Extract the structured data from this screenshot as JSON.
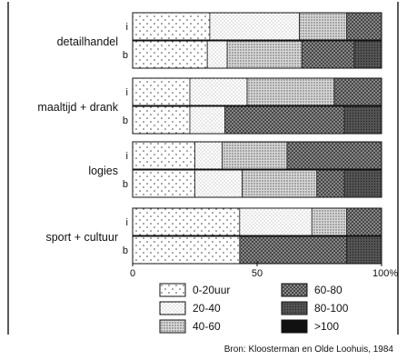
{
  "chart_data": {
    "type": "bar",
    "stacked": true,
    "orientation": "horizontal",
    "x_ticks": [
      0,
      50,
      100
    ],
    "x_tick_labels": [
      "0",
      "50",
      "100%"
    ],
    "xlim": [
      0,
      100
    ],
    "groups": [
      {
        "label": "detailhandel",
        "rows": [
          {
            "label": "i",
            "values": [
              31,
              36,
              19,
              14,
              0,
              0
            ]
          },
          {
            "label": "b",
            "values": [
              30,
              8,
              30,
              21,
              11,
              0
            ]
          }
        ]
      },
      {
        "label": "maaltijd + drank",
        "rows": [
          {
            "label": "i",
            "values": [
              23,
              23,
              35,
              19,
              0,
              0
            ]
          },
          {
            "label": "b",
            "values": [
              23,
              14,
              0,
              48,
              15,
              0
            ]
          }
        ]
      },
      {
        "label": "logies",
        "rows": [
          {
            "label": "i",
            "values": [
              25,
              11,
              26,
              38,
              0,
              0
            ]
          },
          {
            "label": "b",
            "values": [
              25,
              19,
              30,
              11,
              15,
              0
            ]
          }
        ]
      },
      {
        "label": "sport + cultuur",
        "rows": [
          {
            "label": "i",
            "values": [
              43,
              29,
              14,
              14,
              0,
              0
            ]
          },
          {
            "label": "b",
            "values": [
              43,
              0,
              0,
              43,
              14,
              0
            ]
          }
        ]
      }
    ],
    "legend": [
      {
        "label": "0-20uur",
        "pattern": "sparse-dots"
      },
      {
        "label": "20-40",
        "pattern": "fine-dots"
      },
      {
        "label": "40-60",
        "pattern": "medium-dots"
      },
      {
        "label": "60-80",
        "pattern": "cross-hatch"
      },
      {
        "label": "80-100",
        "pattern": "dense-dark"
      },
      {
        "label": ">100",
        "pattern": "solid-black"
      }
    ],
    "source": "Bron: Kloosterman en Olde Loohuis, 1984"
  }
}
